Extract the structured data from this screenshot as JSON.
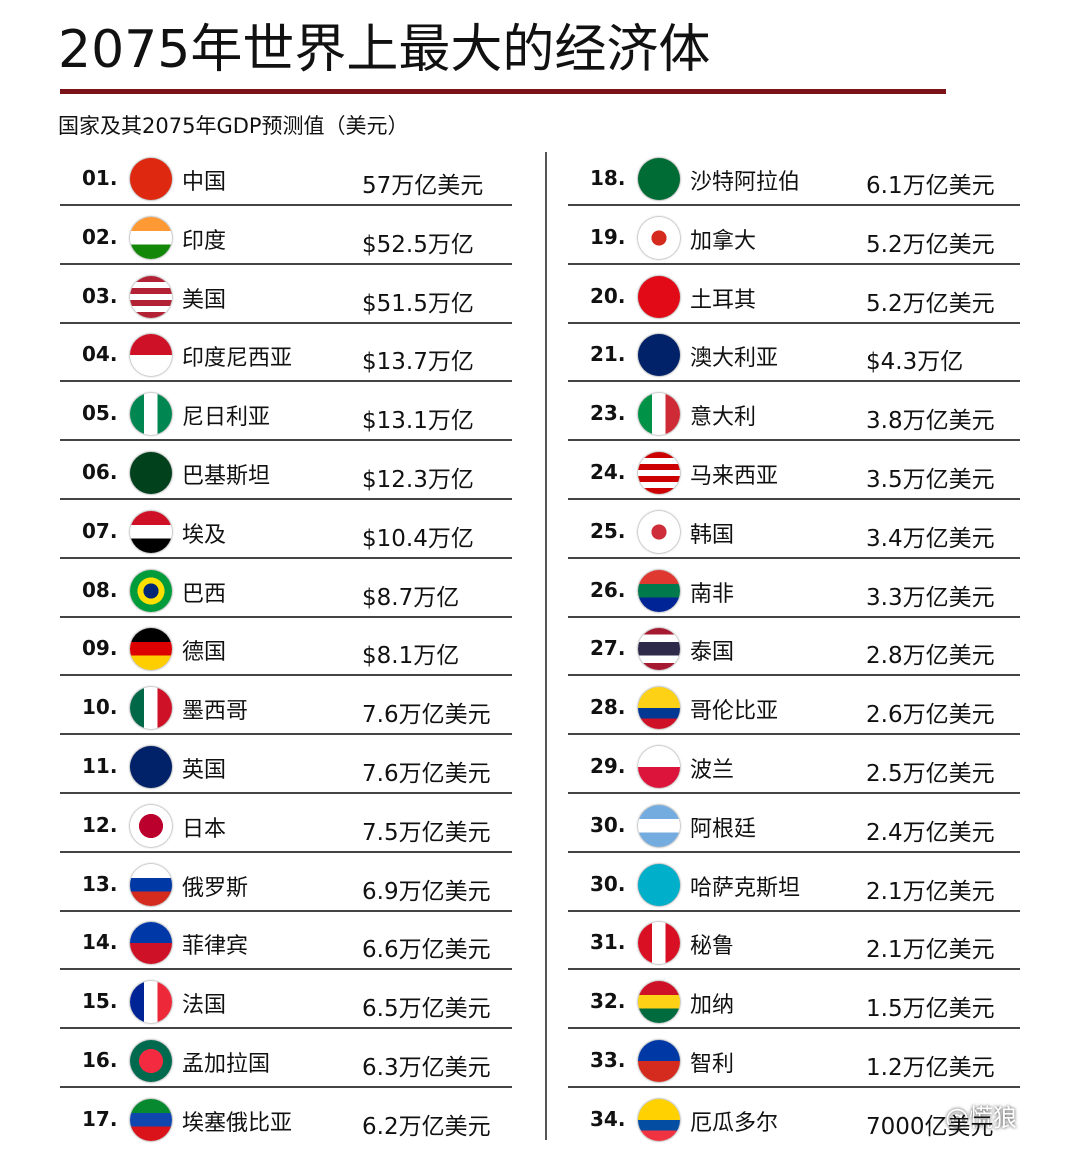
{
  "header": {
    "title": "2075年世界上最大的经济体",
    "subtitle": "国家及其2075年GDP预测值（美元）"
  },
  "left": [
    {
      "rank": "01.",
      "country": "中国",
      "value": "57万亿美元"
    },
    {
      "rank": "02.",
      "country": "印度",
      "value": "$52.5万亿"
    },
    {
      "rank": "03.",
      "country": "美国",
      "value": "$51.5万亿"
    },
    {
      "rank": "04.",
      "country": "印度尼西亚",
      "value": "$13.7万亿"
    },
    {
      "rank": "05.",
      "country": "尼日利亚",
      "value": "$13.1万亿"
    },
    {
      "rank": "06.",
      "country": "巴基斯坦",
      "value": "$12.3万亿"
    },
    {
      "rank": "07.",
      "country": "埃及",
      "value": "$10.4万亿"
    },
    {
      "rank": "08.",
      "country": "巴西",
      "value": "$8.7万亿"
    },
    {
      "rank": "09.",
      "country": "德国",
      "value": "$8.1万亿"
    },
    {
      "rank": "10.",
      "country": "墨西哥",
      "value": "7.6万亿美元"
    },
    {
      "rank": "11.",
      "country": "英国",
      "value": "7.6万亿美元"
    },
    {
      "rank": "12.",
      "country": "日本",
      "value": "7.5万亿美元"
    },
    {
      "rank": "13.",
      "country": "俄罗斯",
      "value": "6.9万亿美元"
    },
    {
      "rank": "14.",
      "country": "菲律宾",
      "value": "6.6万亿美元"
    },
    {
      "rank": "15.",
      "country": "法国",
      "value": "6.5万亿美元"
    },
    {
      "rank": "16.",
      "country": "孟加拉国",
      "value": "6.3万亿美元"
    },
    {
      "rank": "17.",
      "country": "埃塞俄比亚",
      "value": "6.2万亿美元"
    }
  ],
  "right": [
    {
      "rank": "18.",
      "country": "沙特阿拉伯",
      "value": "6.1万亿美元"
    },
    {
      "rank": "19.",
      "country": "加拿大",
      "value": "5.2万亿美元"
    },
    {
      "rank": "20.",
      "country": "土耳其",
      "value": "5.2万亿美元"
    },
    {
      "rank": "21.",
      "country": "澳大利亚",
      "value": "$4.3万亿"
    },
    {
      "rank": "23.",
      "country": "意大利",
      "value": "3.8万亿美元"
    },
    {
      "rank": "24.",
      "country": "马来西亚",
      "value": "3.5万亿美元"
    },
    {
      "rank": "25.",
      "country": "韩国",
      "value": "3.4万亿美元"
    },
    {
      "rank": "26.",
      "country": "南非",
      "value": "3.3万亿美元"
    },
    {
      "rank": "27.",
      "country": "泰国",
      "value": "2.8万亿美元"
    },
    {
      "rank": "28.",
      "country": "哥伦比亚",
      "value": "2.6万亿美元"
    },
    {
      "rank": "29.",
      "country": "波兰",
      "value": "2.5万亿美元"
    },
    {
      "rank": "30.",
      "country": "阿根廷",
      "value": "2.4万亿美元"
    },
    {
      "rank": "30.",
      "country": "哈萨克斯坦",
      "value": "2.1万亿美元"
    },
    {
      "rank": "31.",
      "country": "秘鲁",
      "value": "2.1万亿美元"
    },
    {
      "rank": "32.",
      "country": "加纳",
      "value": "1.5万亿美元"
    },
    {
      "rank": "33.",
      "country": "智利",
      "value": "1.2万亿美元"
    },
    {
      "rank": "34.",
      "country": "厄瓜多尔",
      "value": "7000亿美元"
    }
  ],
  "watermark": "@慌狼"
}
